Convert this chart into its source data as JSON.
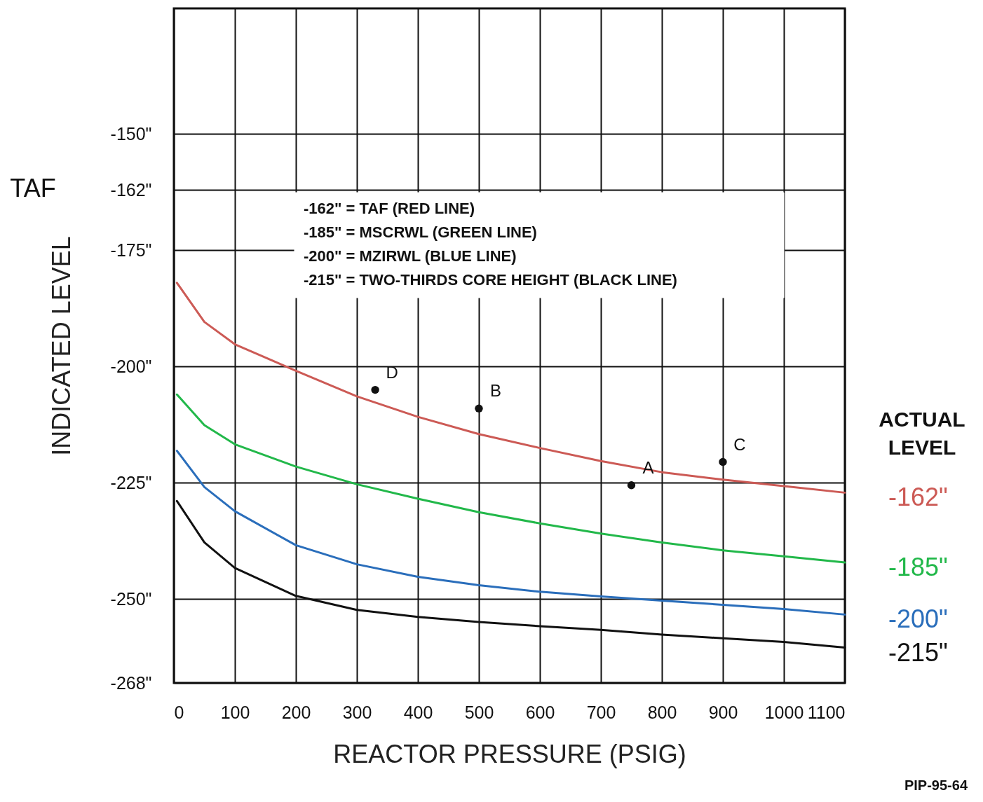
{
  "chart_data": {
    "type": "line",
    "xlabel": "REACTOR PRESSURE (PSIG)",
    "ylabel": "INDICATED LEVEL",
    "xlim": [
      0,
      1100
    ],
    "ylim": [
      -268,
      -123
    ],
    "xticks": [
      0,
      100,
      200,
      300,
      400,
      500,
      600,
      700,
      800,
      900,
      1000,
      1100
    ],
    "yticks": [
      {
        "value": -150,
        "label": "-150\""
      },
      {
        "value": -162,
        "label": "-162\""
      },
      {
        "value": -175,
        "label": "-175\""
      },
      {
        "value": -200,
        "label": "-200\""
      },
      {
        "value": -225,
        "label": "-225\""
      },
      {
        "value": -250,
        "label": "-250\""
      },
      {
        "value": -268,
        "label": "-268\""
      }
    ],
    "grid": true,
    "x": [
      5,
      50,
      100,
      200,
      300,
      400,
      500,
      600,
      700,
      800,
      900,
      1000,
      1100
    ],
    "series": [
      {
        "name": "-162\"",
        "color": "#cc5a55",
        "values": [
          -182,
          -190.4,
          -195.2,
          -200.9,
          -206.4,
          -210.8,
          -214.5,
          -217.5,
          -220.3,
          -222.7,
          -224.3,
          -225.7,
          -227.1
        ]
      },
      {
        "name": "-185\"",
        "color": "#22b84a",
        "values": [
          -206,
          -212.6,
          -216.7,
          -221.5,
          -225.3,
          -228.4,
          -231.3,
          -233.7,
          -235.9,
          -237.8,
          -239.5,
          -240.8,
          -242.1
        ]
      },
      {
        "name": "-200\"",
        "color": "#2a6ebb",
        "values": [
          -218.1,
          -225.9,
          -231.1,
          -238.4,
          -242.5,
          -245.2,
          -247,
          -248.4,
          -249.4,
          -250.3,
          -251.2,
          -252.1,
          -253.3
        ]
      },
      {
        "name": "-215\"",
        "color": "#111111",
        "values": [
          -228.9,
          -237.8,
          -243.3,
          -249.3,
          -252.3,
          -253.8,
          -254.9,
          -255.8,
          -256.6,
          -257.6,
          -258.4,
          -259.2,
          -260.4
        ]
      },
      {
        "type": "scatter",
        "color": "#111111",
        "x": [
          330,
          500,
          900,
          750
        ],
        "values": [
          -205,
          -209,
          -220.5,
          -225.5
        ]
      }
    ],
    "annotations": [
      "-162\" = TAF (RED LINE)",
      "-185\" = MSCRWL (GREEN LINE)",
      "-200\" = MZIRWL (BLUE LINE)",
      "-215\" = TWO-THIRDS CORE HEIGHT (BLACK LINE)",
      "TAF",
      "ACTUAL LEVEL",
      "PIP-95-64",
      {
        "text": "D",
        "x": 330,
        "y": -205
      },
      {
        "text": "B",
        "x": 500,
        "y": -209
      },
      {
        "text": "C",
        "x": 900,
        "y": -220.5
      },
      {
        "text": "A",
        "x": 750,
        "y": -225.5
      }
    ]
  }
}
